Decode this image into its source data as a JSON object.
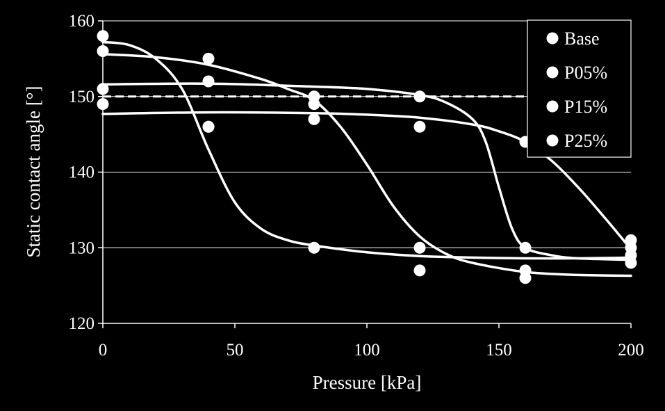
{
  "chart_data": {
    "type": "scatter",
    "title": "",
    "xlabel": "Pressure [kPa]",
    "ylabel": "Static contact angle [°]",
    "xlim": [
      0,
      200
    ],
    "ylim": [
      120,
      160
    ],
    "xticks": [
      0,
      50,
      100,
      150,
      200
    ],
    "yticks": [
      120,
      130,
      140,
      150,
      160
    ],
    "grid": "horizontal",
    "legend_position": "top-right",
    "reference_line": {
      "y": 150,
      "style": "dashed"
    },
    "colors": {
      "background": "#000000",
      "foreground": "#ffffff"
    },
    "series": [
      {
        "name": "Base",
        "points": [
          [
            0,
            158
          ],
          [
            40,
            146
          ],
          [
            80,
            130
          ],
          [
            120,
            130
          ],
          [
            160,
            130
          ],
          [
            200,
            129
          ]
        ],
        "fit": [
          [
            0,
            157.2
          ],
          [
            10,
            156.8
          ],
          [
            20,
            155
          ],
          [
            30,
            151
          ],
          [
            40,
            143
          ],
          [
            50,
            136
          ],
          [
            60,
            132.5
          ],
          [
            70,
            131
          ],
          [
            80,
            130.3
          ],
          [
            100,
            129.4
          ],
          [
            120,
            128.9
          ],
          [
            140,
            128.7
          ],
          [
            160,
            128.6
          ],
          [
            180,
            128.6
          ],
          [
            200,
            128.7
          ]
        ]
      },
      {
        "name": "P05%",
        "points": [
          [
            0,
            156
          ],
          [
            40,
            155
          ],
          [
            80,
            150
          ],
          [
            120,
            127
          ],
          [
            160,
            127
          ],
          [
            200,
            130
          ]
        ],
        "fit": [
          [
            0,
            155.6
          ],
          [
            20,
            155.2
          ],
          [
            40,
            154.2
          ],
          [
            60,
            152.3
          ],
          [
            70,
            151
          ],
          [
            80,
            149.5
          ],
          [
            90,
            146
          ],
          [
            100,
            141
          ],
          [
            110,
            135.5
          ],
          [
            120,
            131.5
          ],
          [
            130,
            129.2
          ],
          [
            140,
            128
          ],
          [
            160,
            126.8
          ],
          [
            180,
            126.4
          ],
          [
            200,
            126.3
          ]
        ]
      },
      {
        "name": "P15%",
        "points": [
          [
            0,
            151
          ],
          [
            40,
            152
          ],
          [
            80,
            149
          ],
          [
            120,
            150
          ],
          [
            160,
            126
          ],
          [
            200,
            131
          ]
        ],
        "fit": [
          [
            0,
            151.6
          ],
          [
            40,
            151.7
          ],
          [
            80,
            151.3
          ],
          [
            100,
            151
          ],
          [
            120,
            150.2
          ],
          [
            130,
            149.2
          ],
          [
            140,
            147
          ],
          [
            145,
            144
          ],
          [
            150,
            138
          ],
          [
            155,
            132.5
          ],
          [
            160,
            130
          ],
          [
            170,
            129
          ],
          [
            180,
            128.6
          ],
          [
            200,
            128.4
          ]
        ]
      },
      {
        "name": "P25%",
        "points": [
          [
            0,
            149
          ],
          [
            40,
            146
          ],
          [
            80,
            147
          ],
          [
            120,
            146
          ],
          [
            160,
            144
          ],
          [
            200,
            128
          ]
        ],
        "fit": [
          [
            0,
            147.7
          ],
          [
            40,
            147.9
          ],
          [
            80,
            147.8
          ],
          [
            100,
            147.6
          ],
          [
            120,
            147.2
          ],
          [
            140,
            146.3
          ],
          [
            150,
            145.4
          ],
          [
            160,
            144
          ],
          [
            170,
            141.5
          ],
          [
            180,
            138
          ],
          [
            190,
            134
          ],
          [
            200,
            129.8
          ]
        ]
      }
    ]
  }
}
